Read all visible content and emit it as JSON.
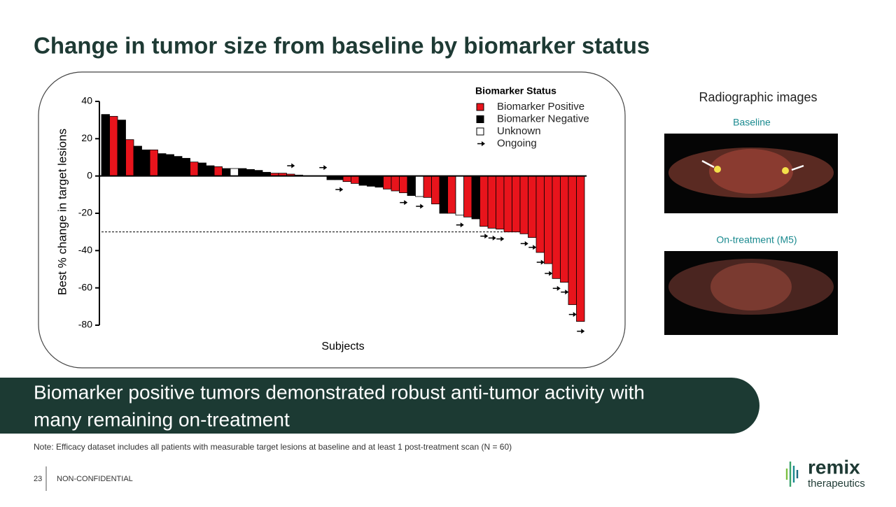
{
  "header": {
    "title": "Change in tumor size from baseline by biomarker status"
  },
  "chart_data": {
    "type": "bar",
    "x_label": "Subjects",
    "y_label": "Best % change in target lesions",
    "legend_title": "Biomarker Status",
    "ylim": [
      -80,
      40
    ],
    "yticks": [
      40,
      20,
      0,
      -20,
      -40,
      -60,
      -80
    ],
    "threshold": -30,
    "series": [
      {
        "name": "Biomarker Positive",
        "color": "#e8141c",
        "values": [
          null,
          32,
          null,
          19.5,
          null,
          null,
          14,
          null,
          null,
          null,
          null,
          7.5,
          null,
          null,
          5,
          null,
          null,
          null,
          null,
          null,
          null,
          1.5,
          1.5,
          1,
          0.5,
          null,
          null,
          null,
          null,
          null,
          -3,
          -4,
          null,
          null,
          null,
          -7,
          -8,
          -9,
          null,
          null,
          -11.5,
          -15,
          null,
          -20,
          null,
          -22,
          null,
          -27,
          -28,
          -28.5,
          -30,
          -30,
          -31,
          -33,
          -41,
          -47,
          -55,
          -57,
          -69,
          -78
        ]
      },
      {
        "name": "Biomarker Negative",
        "color": "#000000",
        "values": [
          33,
          null,
          30,
          null,
          16,
          14,
          null,
          12,
          11.5,
          10.5,
          9.5,
          null,
          7,
          5.5,
          null,
          4,
          null,
          4,
          3.5,
          3,
          2,
          null,
          null,
          null,
          null,
          null,
          null,
          0,
          -2,
          -2,
          null,
          null,
          -5,
          -5.5,
          -6,
          null,
          null,
          null,
          -10.5,
          null,
          null,
          null,
          -20,
          null,
          null,
          null,
          -23,
          null,
          null,
          null,
          null,
          null,
          null,
          null,
          null,
          null,
          null,
          null,
          null,
          null
        ]
      },
      {
        "name": "Unknown",
        "color": "#ffffff",
        "values": [
          null,
          null,
          null,
          null,
          null,
          null,
          null,
          null,
          null,
          null,
          null,
          null,
          null,
          null,
          null,
          null,
          4,
          null,
          null,
          null,
          null,
          null,
          null,
          null,
          null,
          0,
          0,
          null,
          null,
          null,
          null,
          null,
          null,
          null,
          null,
          null,
          null,
          null,
          null,
          -11,
          null,
          null,
          null,
          null,
          -21,
          null,
          null,
          null,
          null,
          null,
          null,
          null,
          null,
          null,
          null,
          null,
          null,
          null,
          null,
          null
        ]
      },
      {
        "name": "Ongoing",
        "color": "#000000",
        "marker": "arrow",
        "values": [
          null,
          null,
          null,
          null,
          null,
          null,
          null,
          null,
          null,
          null,
          null,
          null,
          null,
          null,
          null,
          null,
          null,
          null,
          null,
          null,
          null,
          null,
          null,
          1,
          null,
          null,
          null,
          0,
          null,
          -2,
          null,
          null,
          null,
          null,
          null,
          null,
          null,
          -9,
          null,
          -11,
          null,
          null,
          null,
          null,
          -21,
          null,
          null,
          -27,
          -28,
          -28.5,
          null,
          null,
          -31,
          -33,
          -41,
          -47,
          -55,
          -57,
          -69,
          -78
        ]
      }
    ]
  },
  "images": {
    "title": "Radiographic images",
    "baseline": "Baseline",
    "on_treatment": "On-treatment (M5)"
  },
  "banner": {
    "line1": "Biomarker positive tumors demonstrated robust anti-tumor activity with",
    "line2": "many remaining on-treatment"
  },
  "note": "Note: Efficacy dataset includes all patients with measurable target lesions at baseline and at least 1 post-treatment scan (N = 60)",
  "footer": {
    "page": "23",
    "classification": "NON-CONFIDENTIAL",
    "logo_name": "remix",
    "logo_sub": "therapeutics"
  }
}
